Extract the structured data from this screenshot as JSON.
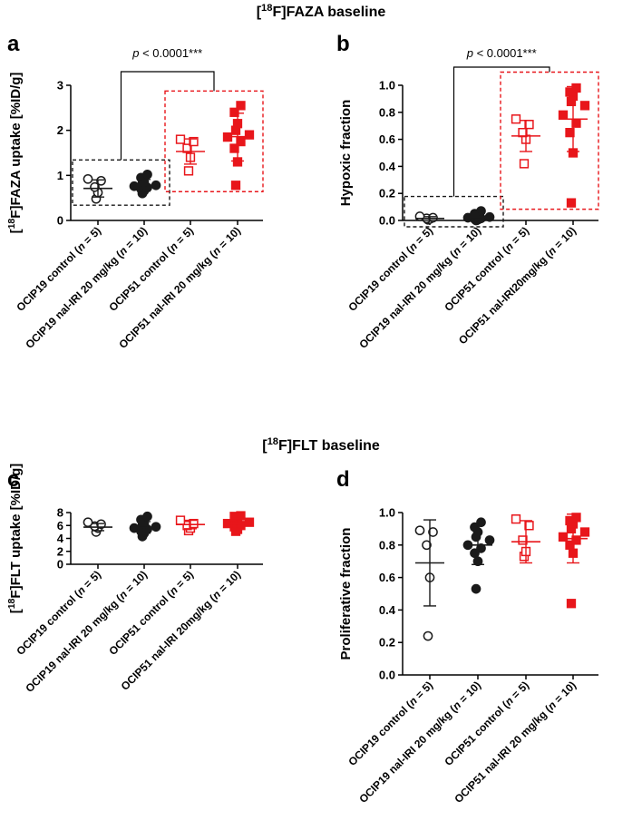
{
  "section_titles": {
    "top": "[18F]FAZA baseline",
    "bottom": "[18F]FLT baseline"
  },
  "colors": {
    "control_group": "#1a1a1a",
    "treated_group": "#e8161b"
  },
  "chart_data": [
    {
      "id": "a",
      "type": "scatter",
      "panel_label": "a",
      "ylabel": "[18F]FAZA uptake [%ID/g]",
      "ylim": [
        0,
        3
      ],
      "yticks": [
        "0",
        "1",
        "2",
        "3"
      ],
      "significance": "p < 0.0001***",
      "boxes": [
        {
          "groups": [
            0,
            1
          ],
          "color": "#1a1a1a"
        },
        {
          "groups": [
            2,
            3
          ],
          "color": "#e8161b"
        }
      ],
      "groups": [
        {
          "label": "OCIP19 control (n = 5)",
          "marker": "open-circle",
          "color": "#1a1a1a",
          "mean": 0.71,
          "sd_low": 0.52,
          "sd_high": 0.9,
          "values": [
            0.48,
            0.62,
            0.74,
            0.88,
            0.92
          ]
        },
        {
          "label": "OCIP19 nal-IRI 20 mg/kg (n = 10)",
          "marker": "filled-circle",
          "color": "#1a1a1a",
          "mean": 0.78,
          "sd_low": 0.65,
          "sd_high": 0.91,
          "values": [
            0.6,
            0.66,
            0.7,
            0.73,
            0.76,
            0.78,
            0.82,
            0.85,
            0.95,
            1.02
          ]
        },
        {
          "label": "OCIP51 control (n = 5)",
          "marker": "open-square",
          "color": "#e8161b",
          "mean": 1.53,
          "sd_low": 1.25,
          "sd_high": 1.81,
          "values": [
            1.1,
            1.4,
            1.6,
            1.75,
            1.8
          ]
        },
        {
          "label": "OCIP51 nal-IRI 20 mg/kg (n = 10)",
          "marker": "filled-square",
          "color": "#e8161b",
          "mean": 1.86,
          "sd_low": 1.32,
          "sd_high": 2.38,
          "values": [
            0.78,
            1.3,
            1.6,
            1.75,
            1.85,
            1.9,
            2.0,
            2.15,
            2.4,
            2.55
          ]
        }
      ]
    },
    {
      "id": "b",
      "type": "scatter",
      "panel_label": "b",
      "ylabel": "Hypoxic fraction",
      "ylim": [
        0,
        1.0
      ],
      "yticks": [
        "0.0",
        "0.2",
        "0.4",
        "0.6",
        "0.8",
        "1.0"
      ],
      "significance": "p < 0.0001***",
      "boxes": [
        {
          "groups": [
            0,
            1
          ],
          "color": "#1a1a1a"
        },
        {
          "groups": [
            2,
            3
          ],
          "color": "#e8161b"
        }
      ],
      "groups": [
        {
          "label": "OCIP19 control (n = 5)",
          "marker": "open-circle",
          "color": "#1a1a1a",
          "mean": 0.015,
          "sd_low": 0.0,
          "sd_high": 0.028,
          "values": [
            0.005,
            0.01,
            0.015,
            0.02,
            0.03
          ]
        },
        {
          "label": "OCIP19 nal-IRI 20 mg/kg (n = 10)",
          "marker": "filled-circle",
          "color": "#1a1a1a",
          "mean": 0.025,
          "sd_low": 0.005,
          "sd_high": 0.045,
          "values": [
            0.0,
            0.005,
            0.01,
            0.015,
            0.02,
            0.025,
            0.03,
            0.04,
            0.05,
            0.07
          ]
        },
        {
          "label": "OCIP51 control (n = 5)",
          "marker": "open-square",
          "color": "#e8161b",
          "mean": 0.625,
          "sd_low": 0.51,
          "sd_high": 0.74,
          "values": [
            0.42,
            0.6,
            0.65,
            0.71,
            0.75
          ]
        },
        {
          "label": "OCIP51 nal-IRI20mg/kg (n = 10)",
          "marker": "filled-square",
          "color": "#e8161b",
          "mean": 0.75,
          "sd_low": 0.51,
          "sd_high": 0.99,
          "values": [
            0.13,
            0.5,
            0.65,
            0.72,
            0.78,
            0.85,
            0.88,
            0.92,
            0.95,
            0.98
          ]
        }
      ]
    },
    {
      "id": "c",
      "type": "scatter",
      "panel_label": "c",
      "ylabel": "[18F]FLT uptake [%ID/g]",
      "ylim": [
        0,
        8
      ],
      "yticks": [
        "0",
        "2",
        "4",
        "6",
        "8"
      ],
      "significance": "",
      "boxes": [],
      "groups": [
        {
          "label": "OCIP19 control (n = 5)",
          "marker": "open-circle",
          "color": "#1a1a1a",
          "mean": 5.75,
          "sd_low": 5.2,
          "sd_high": 6.3,
          "values": [
            5.0,
            5.6,
            5.9,
            6.2,
            6.5
          ]
        },
        {
          "label": "OCIP19 nal-IRI 20 mg/kg (n = 10)",
          "marker": "filled-circle",
          "color": "#1a1a1a",
          "mean": 5.7,
          "sd_low": 4.8,
          "sd_high": 6.6,
          "values": [
            4.3,
            4.8,
            5.1,
            5.4,
            5.6,
            5.8,
            6.0,
            6.3,
            6.9,
            7.4
          ]
        },
        {
          "label": "OCIP51 control (n = 5)",
          "marker": "open-square",
          "color": "#e8161b",
          "mean": 6.15,
          "sd_low": 5.5,
          "sd_high": 6.8,
          "values": [
            5.2,
            5.6,
            6.0,
            6.3,
            6.8
          ]
        },
        {
          "label": "OCIP51 nal-IRI 20mg/kg (n = 10)",
          "marker": "filled-square",
          "color": "#e8161b",
          "mean": 6.35,
          "sd_low": 5.6,
          "sd_high": 7.1,
          "values": [
            5.1,
            5.4,
            5.8,
            6.0,
            6.3,
            6.5,
            6.8,
            7.1,
            7.4,
            7.5
          ]
        }
      ]
    },
    {
      "id": "d",
      "type": "scatter",
      "panel_label": "d",
      "ylabel": "Proliferative fraction",
      "ylim": [
        0,
        1.0
      ],
      "yticks": [
        "0.0",
        "0.2",
        "0.4",
        "0.6",
        "0.8",
        "1.0"
      ],
      "significance": "",
      "boxes": [],
      "groups": [
        {
          "label": "OCIP19 control (n = 5)",
          "marker": "open-circle",
          "color": "#1a1a1a",
          "mean": 0.69,
          "sd_low": 0.425,
          "sd_high": 0.955,
          "values": [
            0.24,
            0.6,
            0.8,
            0.88,
            0.89
          ]
        },
        {
          "label": "OCIP19 nal-IRI 20 mg/kg (n = 10)",
          "marker": "filled-circle",
          "color": "#1a1a1a",
          "mean": 0.8,
          "sd_low": 0.68,
          "sd_high": 0.92,
          "values": [
            0.53,
            0.7,
            0.75,
            0.78,
            0.8,
            0.83,
            0.85,
            0.88,
            0.91,
            0.94
          ]
        },
        {
          "label": "OCIP51 control (n = 5)",
          "marker": "open-square",
          "color": "#e8161b",
          "mean": 0.82,
          "sd_low": 0.69,
          "sd_high": 0.95,
          "values": [
            0.73,
            0.76,
            0.83,
            0.92,
            0.96
          ]
        },
        {
          "label": "OCIP51 nal-IRI 20 mg/kg (n = 10)",
          "marker": "filled-square",
          "color": "#e8161b",
          "mean": 0.84,
          "sd_low": 0.69,
          "sd_high": 0.99,
          "values": [
            0.44,
            0.75,
            0.8,
            0.83,
            0.85,
            0.88,
            0.9,
            0.93,
            0.95,
            0.97
          ]
        }
      ]
    }
  ]
}
